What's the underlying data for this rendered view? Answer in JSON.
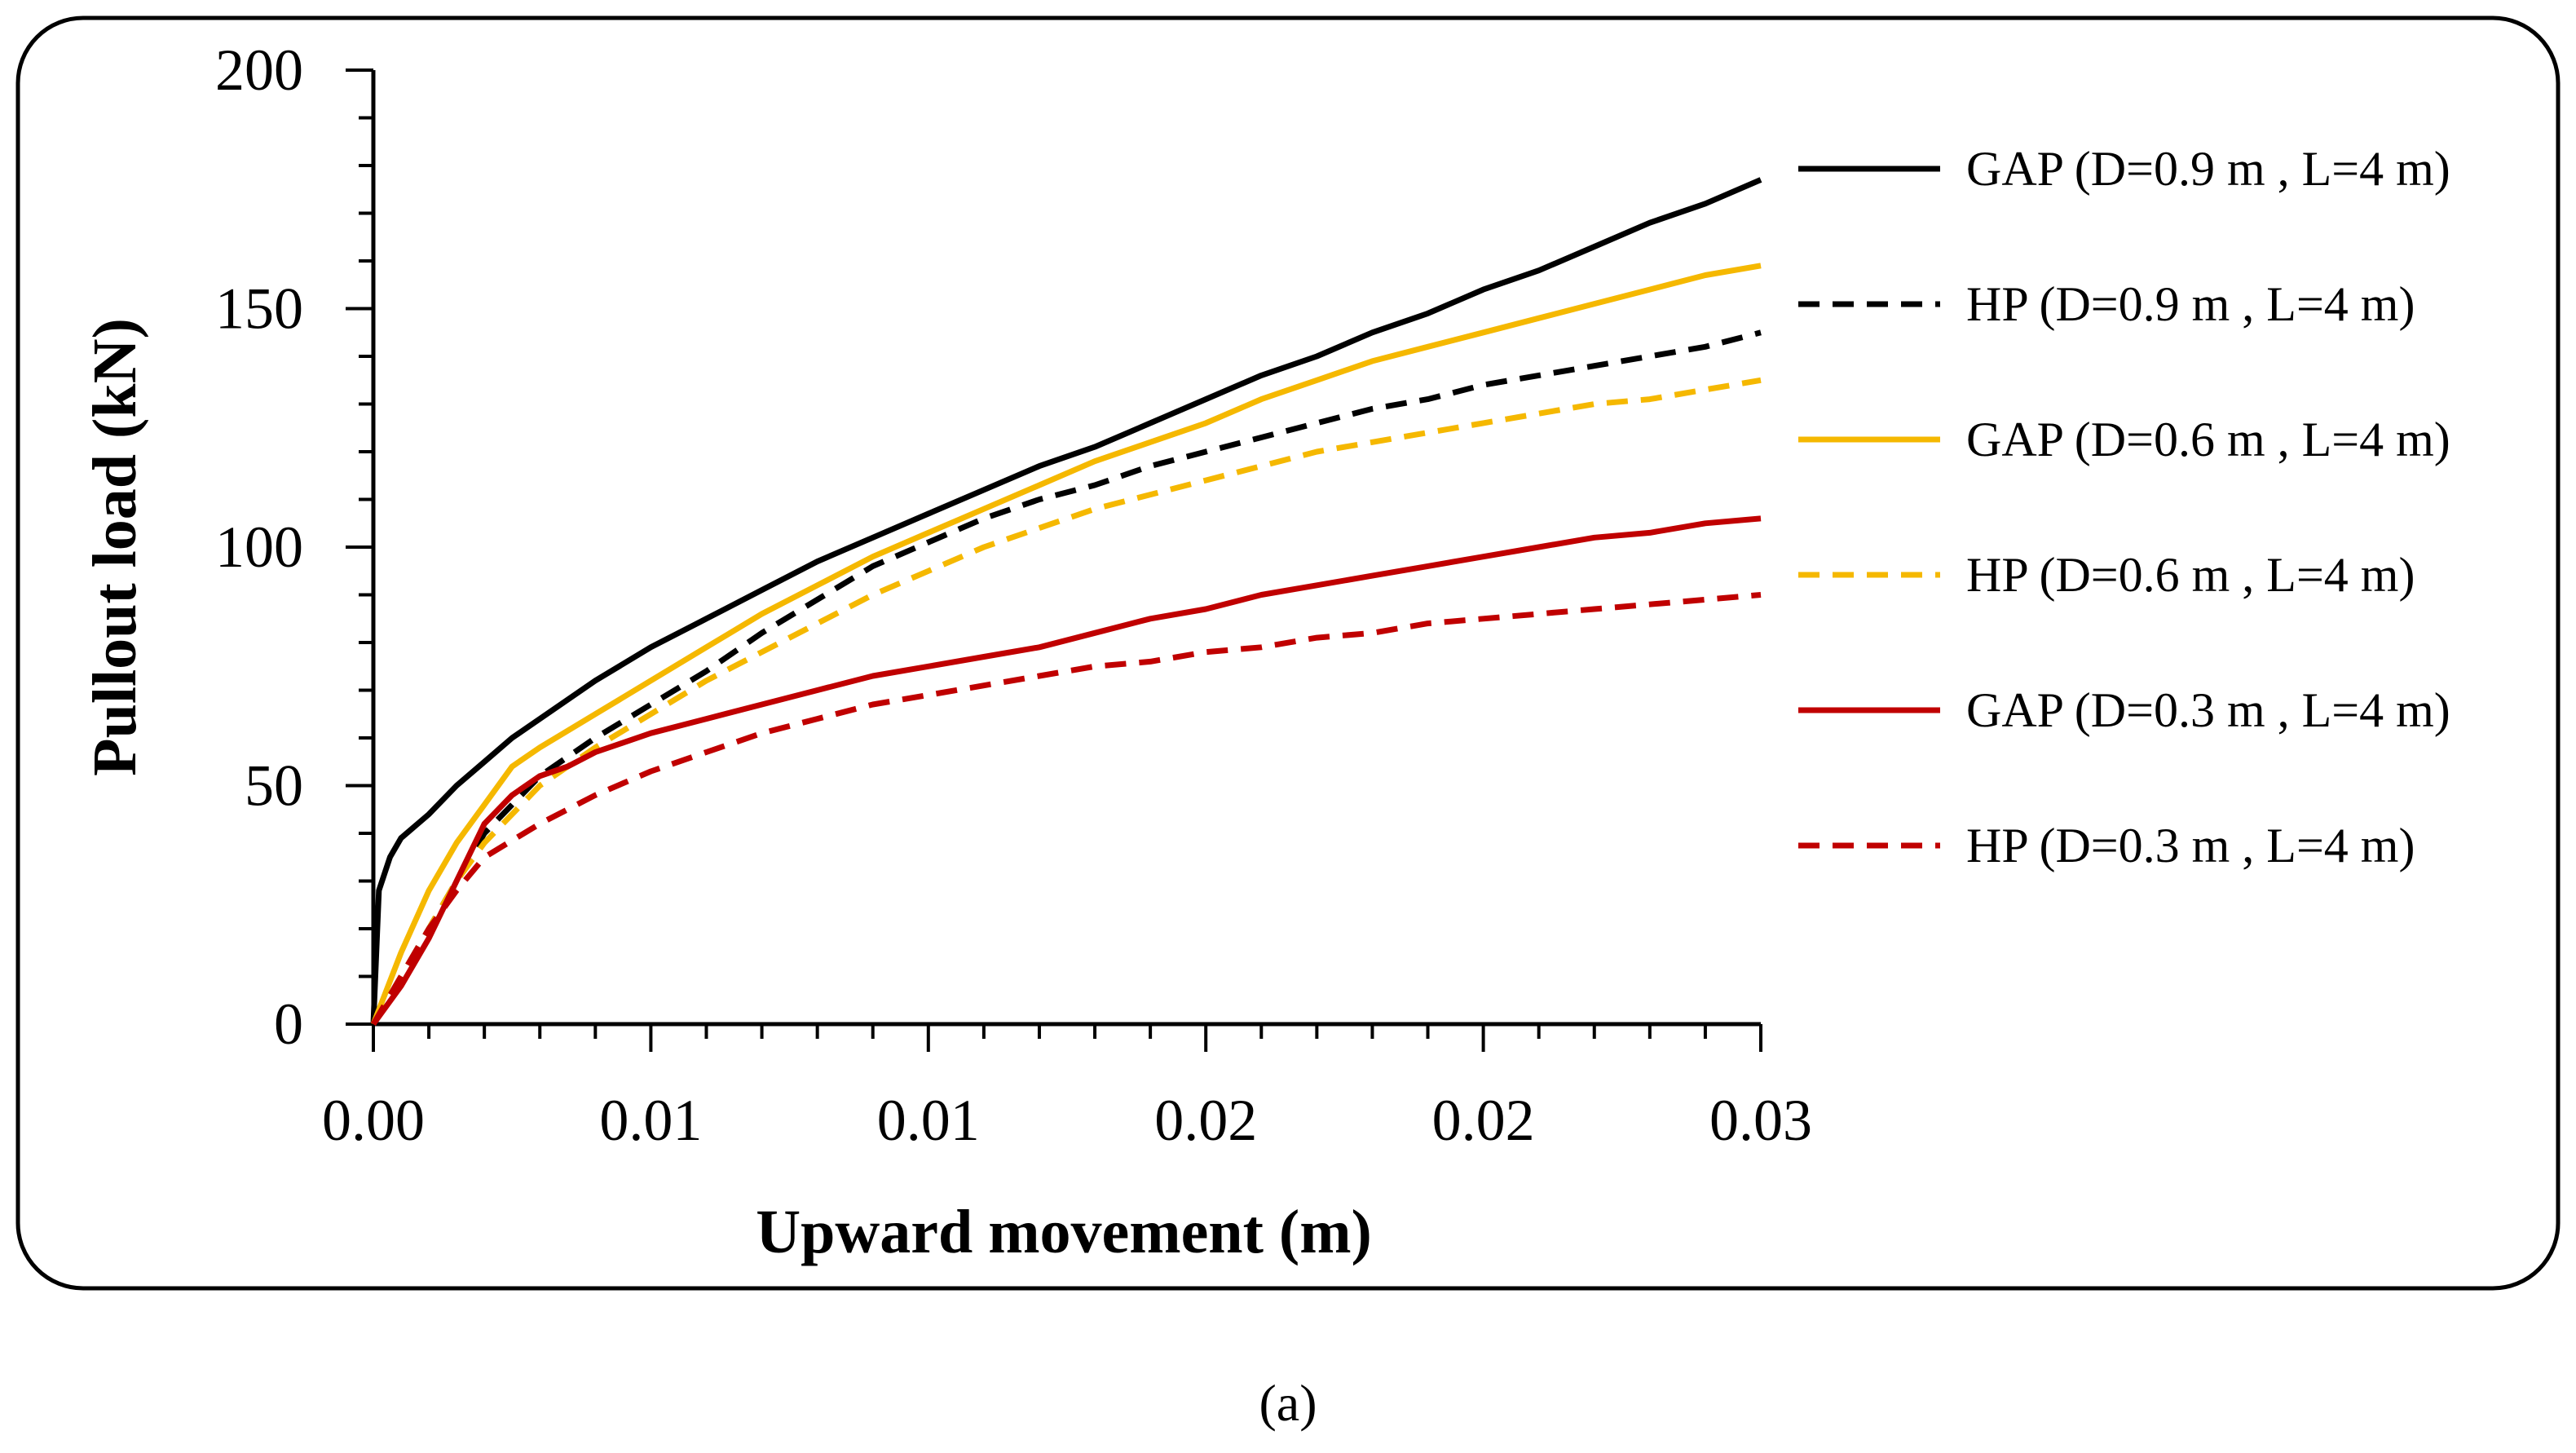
{
  "chart_data": {
    "type": "line",
    "title": "",
    "xlabel": "Upward movement (m)",
    "ylabel": "Pullout load (kN)",
    "xlim": [
      0,
      0.025
    ],
    "ylim": [
      0,
      200
    ],
    "x_tick_labels": [
      "0.00",
      "0.01",
      "0.01",
      "0.02",
      "0.02",
      "0.03"
    ],
    "y_tick_labels": [
      "0",
      "50",
      "100",
      "150",
      "200"
    ],
    "y_tick_values": [
      0,
      50,
      100,
      150,
      200
    ],
    "grid": false,
    "legend_position": "right",
    "series": [
      {
        "name": "GAP (D=0.9 m , L=4 m)",
        "color": "#000000",
        "dashed": false,
        "x": [
          0,
          0.0001,
          0.0003,
          0.0005,
          0.001,
          0.0015,
          0.002,
          0.0025,
          0.003,
          0.004,
          0.005,
          0.006,
          0.007,
          0.008,
          0.009,
          0.01,
          0.011,
          0.012,
          0.013,
          0.014,
          0.015,
          0.016,
          0.017,
          0.018,
          0.019,
          0.02,
          0.021,
          0.022,
          0.023,
          0.024,
          0.025
        ],
        "values": [
          0,
          28,
          35,
          39,
          44,
          50,
          55,
          60,
          64,
          72,
          79,
          85,
          91,
          97,
          102,
          107,
          112,
          117,
          121,
          126,
          131,
          136,
          140,
          145,
          149,
          154,
          158,
          163,
          168,
          172,
          177
        ]
      },
      {
        "name": "HP (D=0.9 m , L=4 m)",
        "color": "#000000",
        "dashed": true,
        "x": [
          0,
          0.0005,
          0.001,
          0.0015,
          0.002,
          0.003,
          0.004,
          0.005,
          0.006,
          0.007,
          0.008,
          0.009,
          0.01,
          0.011,
          0.012,
          0.013,
          0.014,
          0.015,
          0.016,
          0.017,
          0.018,
          0.019,
          0.02,
          0.021,
          0.022,
          0.023,
          0.024,
          0.025
        ],
        "values": [
          0,
          10,
          20,
          30,
          40,
          52,
          60,
          67,
          74,
          82,
          89,
          96,
          101,
          106,
          110,
          113,
          117,
          120,
          123,
          126,
          129,
          131,
          134,
          136,
          138,
          140,
          142,
          145
        ]
      },
      {
        "name": "GAP (D=0.6 m , L=4 m)",
        "color": "#f5b800",
        "dashed": false,
        "x": [
          0,
          0.0005,
          0.001,
          0.0015,
          0.002,
          0.0025,
          0.003,
          0.004,
          0.005,
          0.006,
          0.007,
          0.008,
          0.009,
          0.01,
          0.011,
          0.012,
          0.013,
          0.014,
          0.015,
          0.016,
          0.017,
          0.018,
          0.019,
          0.02,
          0.021,
          0.022,
          0.023,
          0.024,
          0.025
        ],
        "values": [
          0,
          15,
          28,
          38,
          46,
          54,
          58,
          65,
          72,
          79,
          86,
          92,
          98,
          103,
          108,
          113,
          118,
          122,
          126,
          131,
          135,
          139,
          142,
          145,
          148,
          151,
          154,
          157,
          159
        ]
      },
      {
        "name": "HP (D=0.6 m , L=4 m)",
        "color": "#f5b800",
        "dashed": true,
        "x": [
          0,
          0.0005,
          0.001,
          0.0015,
          0.002,
          0.003,
          0.004,
          0.005,
          0.006,
          0.007,
          0.008,
          0.009,
          0.01,
          0.011,
          0.012,
          0.013,
          0.014,
          0.015,
          0.016,
          0.017,
          0.018,
          0.019,
          0.02,
          0.021,
          0.022,
          0.023,
          0.024,
          0.025
        ],
        "values": [
          0,
          10,
          20,
          30,
          38,
          50,
          58,
          65,
          72,
          78,
          84,
          90,
          95,
          100,
          104,
          108,
          111,
          114,
          117,
          120,
          122,
          124,
          126,
          128,
          130,
          131,
          133,
          135
        ]
      },
      {
        "name": "GAP (D=0.3 m , L=4 m)",
        "color": "#c00000",
        "dashed": false,
        "x": [
          0,
          0.0005,
          0.001,
          0.0015,
          0.002,
          0.0025,
          0.003,
          0.0035,
          0.004,
          0.005,
          0.006,
          0.007,
          0.008,
          0.009,
          0.01,
          0.011,
          0.012,
          0.013,
          0.014,
          0.015,
          0.016,
          0.017,
          0.018,
          0.019,
          0.02,
          0.021,
          0.022,
          0.023,
          0.024,
          0.025
        ],
        "values": [
          0,
          8,
          18,
          30,
          42,
          48,
          52,
          54,
          57,
          61,
          64,
          67,
          70,
          73,
          75,
          77,
          79,
          82,
          85,
          87,
          90,
          92,
          94,
          96,
          98,
          100,
          102,
          103,
          105,
          106
        ]
      },
      {
        "name": "HP (D=0.3 m , L=4 m)",
        "color": "#c00000",
        "dashed": true,
        "x": [
          0,
          0.0005,
          0.001,
          0.0015,
          0.002,
          0.003,
          0.004,
          0.005,
          0.006,
          0.007,
          0.008,
          0.009,
          0.01,
          0.011,
          0.012,
          0.013,
          0.014,
          0.015,
          0.016,
          0.017,
          0.018,
          0.019,
          0.02,
          0.021,
          0.022,
          0.023,
          0.024,
          0.025
        ],
        "values": [
          0,
          10,
          20,
          28,
          35,
          42,
          48,
          53,
          57,
          61,
          64,
          67,
          69,
          71,
          73,
          75,
          76,
          78,
          79,
          81,
          82,
          84,
          85,
          86,
          87,
          88,
          89,
          90
        ]
      }
    ]
  },
  "caption": "(a)"
}
